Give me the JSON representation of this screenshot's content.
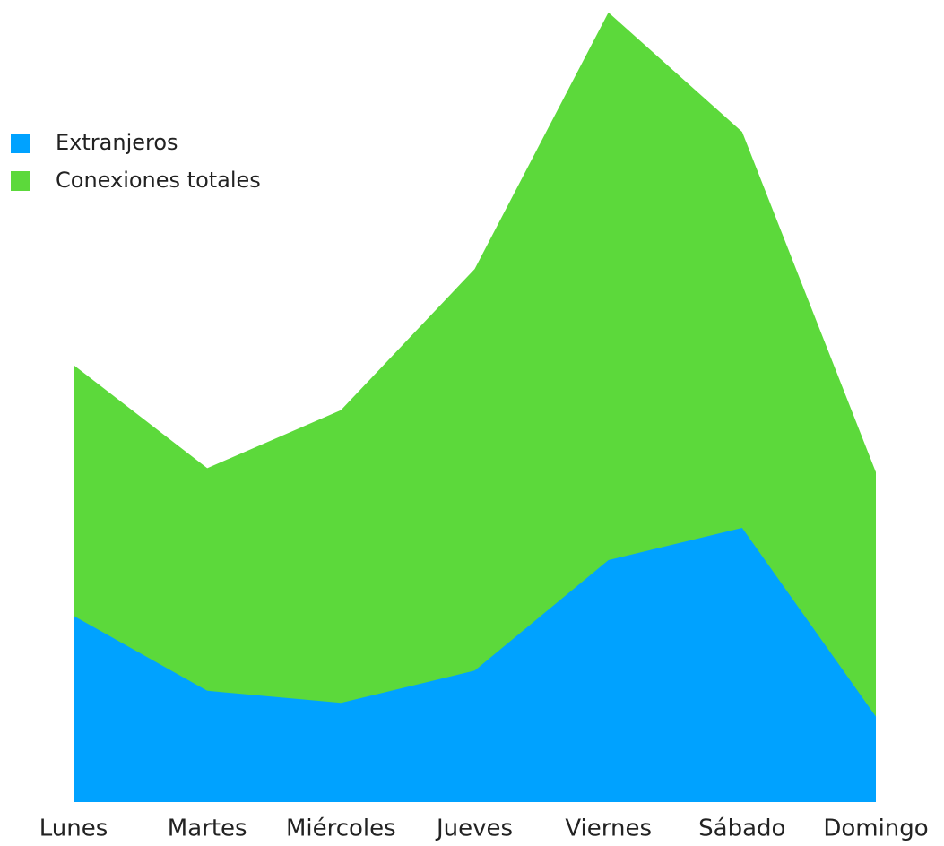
{
  "chart_data": {
    "type": "area",
    "categories": [
      "Lunes",
      "Martes",
      "Miércoles",
      "Jueves",
      "Viernes",
      "Sábado",
      "Domingo"
    ],
    "series": [
      {
        "name": "Extranjeros",
        "color": "#00a2ff",
        "values": [
          231,
          138,
          123,
          163,
          300,
          340,
          106
        ]
      },
      {
        "name": "Conexiones totales",
        "color": "#5cd93b",
        "values": [
          542,
          414,
          486,
          661,
          979,
          831,
          409
        ]
      }
    ],
    "ylim": [
      0,
      1000
    ],
    "legend": "upper left"
  }
}
